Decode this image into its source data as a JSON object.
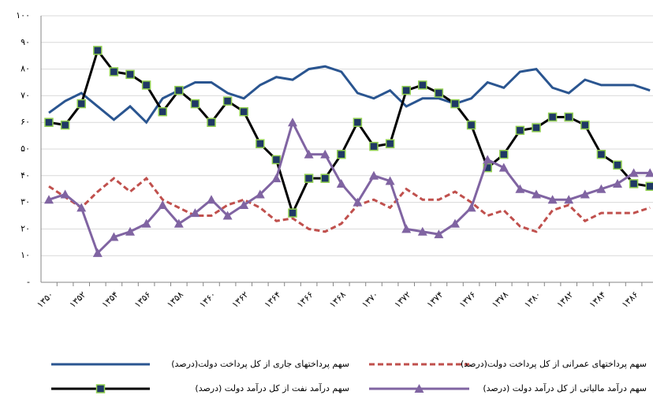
{
  "chart_data": {
    "type": "line",
    "categories": [
      "۱۳۵۰",
      null,
      "۱۳۵۲",
      null,
      "۱۳۵۴",
      null,
      "۱۳۵۶",
      null,
      "۱۳۵۸",
      null,
      "۱۳۶۰",
      null,
      "۱۳۶۲",
      null,
      "۱۳۶۴",
      null,
      "۱۳۶۶",
      null,
      "۱۳۶۸",
      null,
      "۱۳۷۰",
      null,
      "۱۳۷۲",
      null,
      "۱۳۷۴",
      null,
      "۱۳۷۶",
      null,
      "۱۳۷۸",
      null,
      "۱۳۸۰",
      null,
      "۱۳۸۲",
      null,
      "۱۳۸۴",
      null,
      "۱۳۸۶",
      null
    ],
    "ylim": [
      0,
      100
    ],
    "yticks": [
      {
        "value": 0,
        "label": "-"
      },
      {
        "value": 10,
        "label": "۱۰"
      },
      {
        "value": 20,
        "label": "۲۰"
      },
      {
        "value": 30,
        "label": "۳۰"
      },
      {
        "value": 40,
        "label": "۴۰"
      },
      {
        "value": 50,
        "label": "۵۰"
      },
      {
        "value": 60,
        "label": "۶۰"
      },
      {
        "value": 70,
        "label": "۷۰"
      },
      {
        "value": 80,
        "label": "۸۰"
      },
      {
        "value": 90,
        "label": "۹۰"
      },
      {
        "value": 100,
        "label": "۱۰۰"
      }
    ],
    "grid": true,
    "series": [
      {
        "name": "سهم پرداختهای جاری از کل پرداخت دولت(درصد)",
        "color": "#2a5590",
        "dash": false,
        "marker": "none",
        "values": [
          63.6,
          68,
          71,
          66,
          61,
          66,
          60,
          69,
          72,
          75,
          75,
          71,
          69,
          74,
          77,
          76,
          80,
          81,
          79,
          71,
          69,
          72,
          66,
          69,
          69,
          67,
          69,
          75,
          73,
          79,
          80,
          73,
          71,
          76,
          74,
          74,
          74,
          72
        ]
      },
      {
        "name": "سهم پرداختهای عمرانی از کل پرداخت دولت(درصد)",
        "color": "#c0504d",
        "dash": true,
        "marker": "none",
        "values": [
          36,
          32,
          28,
          34,
          39,
          34,
          39,
          31,
          28,
          25,
          25,
          29,
          31,
          28,
          23,
          24,
          20,
          19,
          22,
          29,
          31,
          28,
          35,
          31,
          31,
          34,
          30,
          25,
          27,
          21,
          19,
          27,
          29,
          23,
          26,
          26,
          26,
          28
        ]
      },
      {
        "name": "سهم درآمد نفت از کل درآمد دولت (درصد)",
        "color": "#000000",
        "dash": false,
        "marker": "square",
        "values": [
          60,
          59,
          67,
          87,
          79,
          78,
          74,
          64,
          72,
          67,
          60,
          68,
          64,
          52,
          46,
          26,
          39,
          39,
          48,
          60,
          51,
          52,
          72,
          74,
          71,
          67,
          59,
          43,
          48,
          57,
          58,
          62,
          62,
          59,
          48,
          44,
          37,
          36
        ]
      },
      {
        "name": "سهم درآمد مالیاتی از کل درآمد دولت (درصد)",
        "color": "#8064a2",
        "dash": false,
        "marker": "triangle",
        "values": [
          31,
          33,
          28,
          11,
          17,
          19,
          22,
          29,
          22,
          26,
          31,
          25,
          29,
          33,
          39,
          60,
          48,
          48,
          37,
          30,
          40,
          38,
          20,
          19,
          18,
          22,
          28,
          46,
          43,
          35,
          33,
          31,
          31,
          33,
          35,
          37,
          41,
          41
        ]
      }
    ]
  }
}
